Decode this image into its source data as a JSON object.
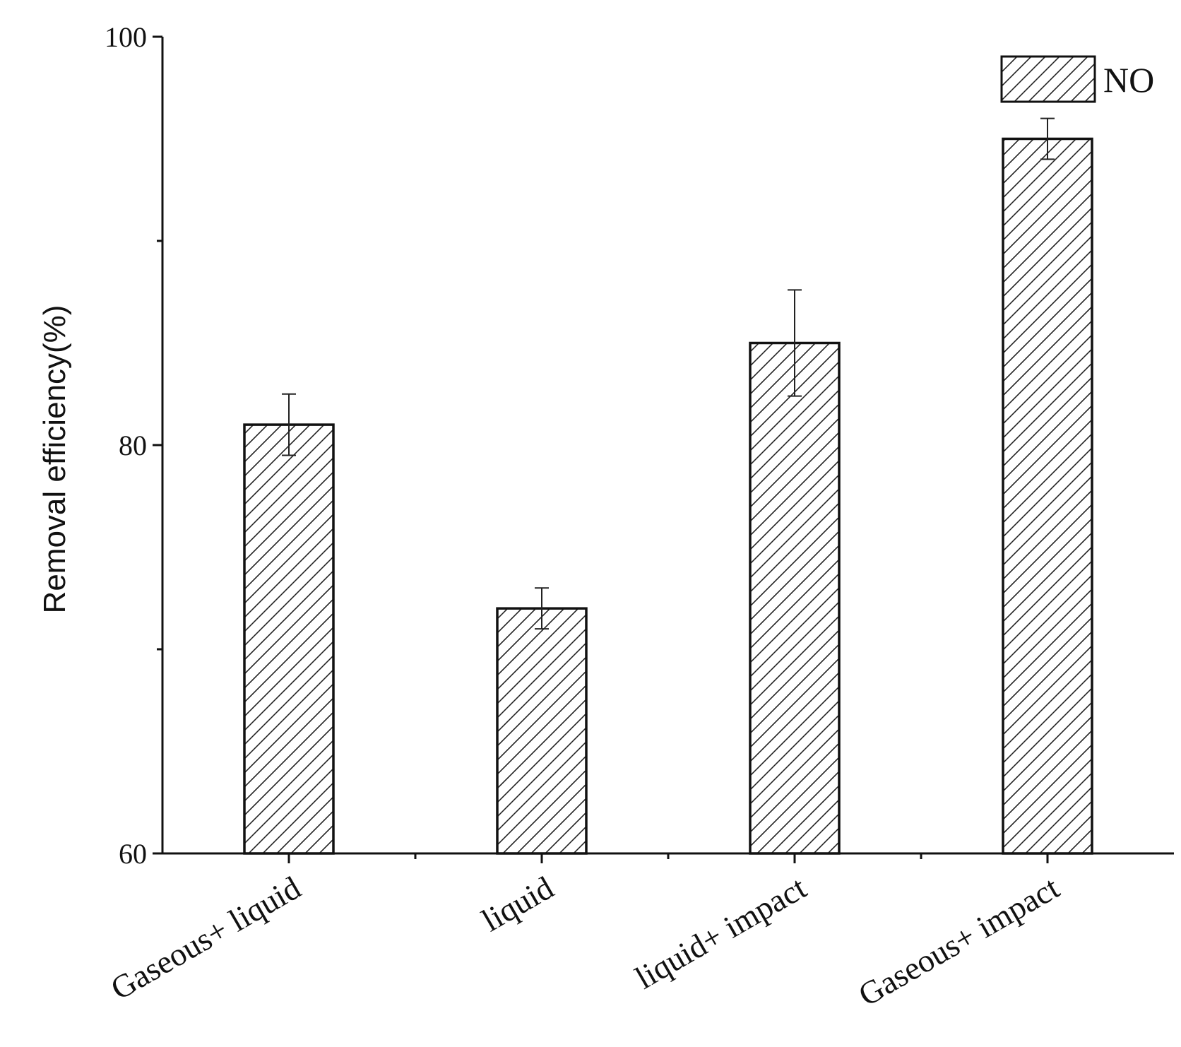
{
  "chart_data": {
    "type": "bar",
    "title": "",
    "xlabel": "",
    "ylabel": "Removal efficiency(%)",
    "ylim": [
      60,
      100
    ],
    "yticks": [
      60,
      80,
      100
    ],
    "yminor_ticks": [
      70,
      90
    ],
    "categories": [
      "Gaseous+ liquid",
      "liquid",
      "liquid+ impact",
      "Gaseous+ impact"
    ],
    "series": [
      {
        "name": "NO",
        "values": [
          81.0,
          72.0,
          85.0,
          95.0
        ],
        "error": [
          1.5,
          1.0,
          2.6,
          1.0
        ],
        "pattern": "diagonal-hatch",
        "fill": "#ffffff",
        "stroke": "#111111"
      }
    ],
    "legend": {
      "position": "top-right"
    },
    "grid": false
  }
}
